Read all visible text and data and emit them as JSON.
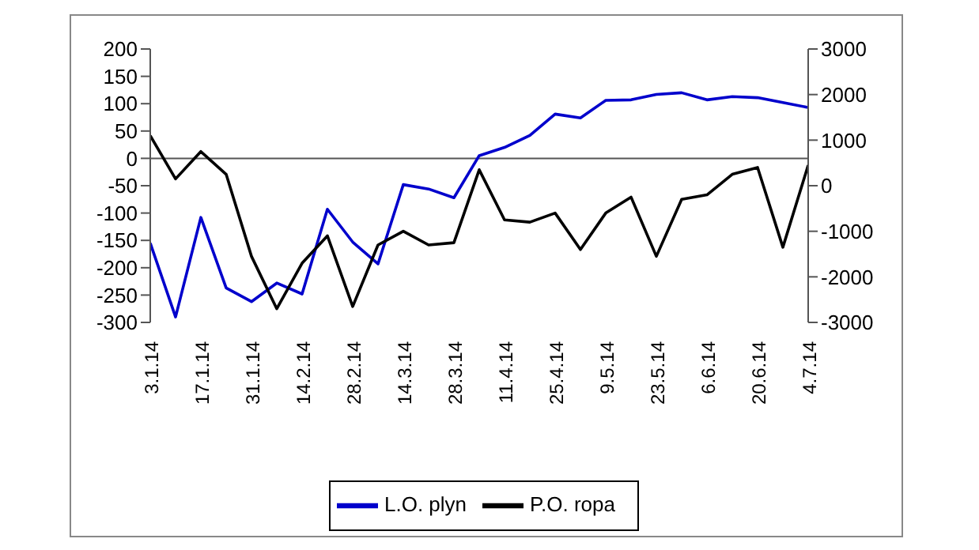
{
  "chart_data": {
    "type": "line",
    "categories": [
      "3.1.14",
      null,
      "17.1.14",
      null,
      "31.1.14",
      null,
      "14.2.14",
      null,
      "28.2.14",
      null,
      "14.3.14",
      null,
      "28.3.14",
      null,
      "11.4.14",
      null,
      "25.4.14",
      null,
      "9.5.14",
      null,
      "23.5.14",
      null,
      "6.6.14",
      null,
      "20.6.14",
      null,
      "4.7.14"
    ],
    "series": [
      {
        "name": "L.O. plyn",
        "color": "#0000cc",
        "values": [
          -155,
          -290,
          -108,
          -237,
          -262,
          -228,
          -248,
          -93,
          -153,
          -193,
          -48,
          -56,
          -72,
          5,
          20,
          42,
          81,
          74,
          106,
          107,
          117,
          120,
          107,
          113,
          111,
          102,
          93
        ]
      },
      {
        "name": "P.O. ropa",
        "color": "#000000",
        "axis": "y2",
        "values": [
          1100,
          150,
          750,
          250,
          -1550,
          -2700,
          -1700,
          -1100,
          -2650,
          -1300,
          -1000,
          -1300,
          -1250,
          350,
          -750,
          -800,
          -600,
          -1400,
          -600,
          -250,
          -1550,
          -300,
          -200,
          250,
          400,
          -1350,
          450
        ]
      }
    ],
    "ylim": [
      -300,
      200
    ],
    "yticks": [
      -300,
      -250,
      -200,
      -150,
      -100,
      -50,
      0,
      50,
      100,
      150,
      200
    ],
    "y2lim": [
      -3000,
      3000
    ],
    "y2ticks": [
      -3000,
      -2000,
      -1000,
      0,
      1000,
      2000,
      3000
    ],
    "legend": "bottom",
    "marker": "none",
    "line_style": "solid"
  }
}
